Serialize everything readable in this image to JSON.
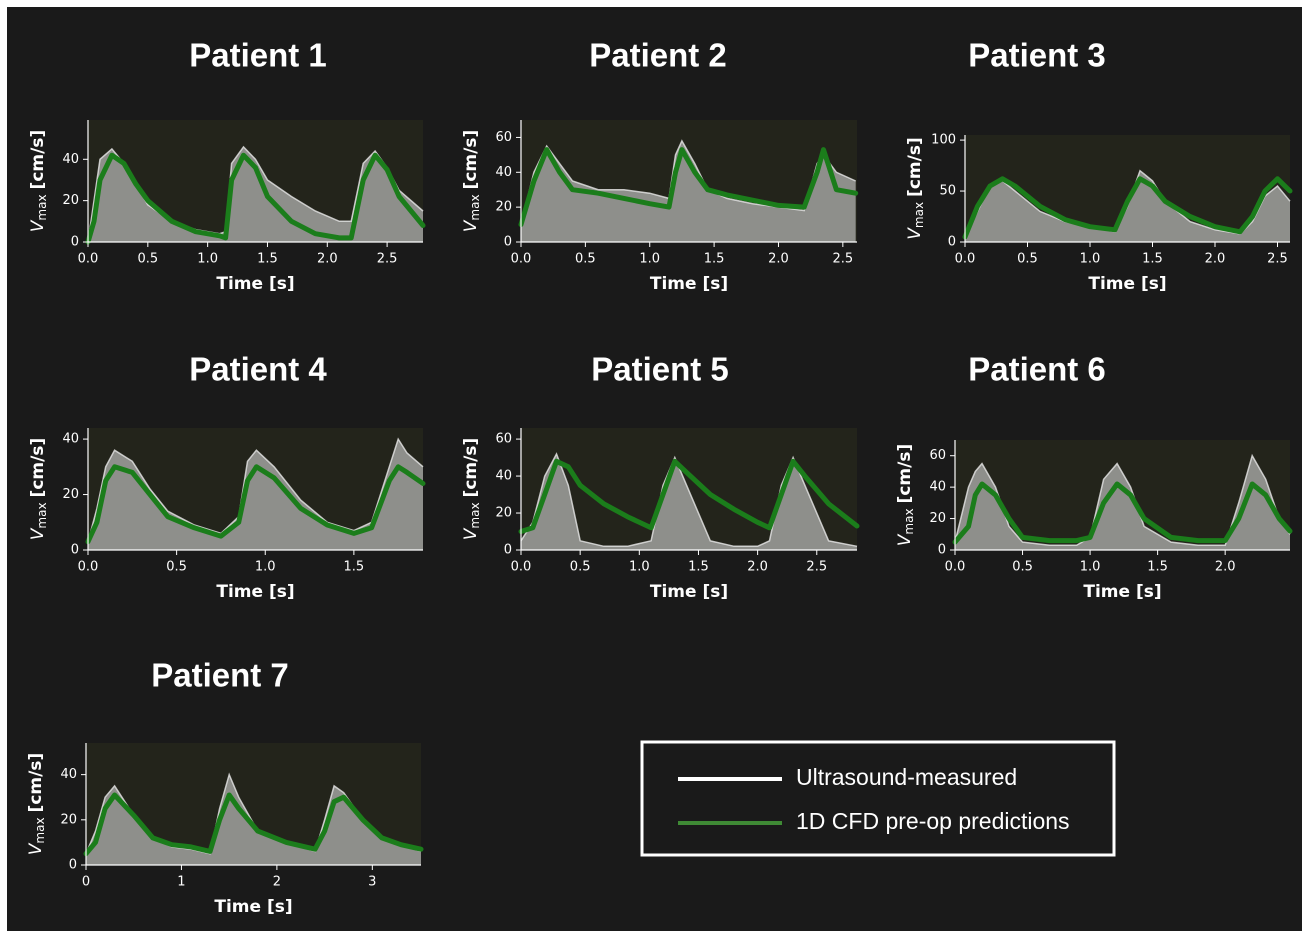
{
  "chart_data": [
    {
      "type": "line",
      "title": "Patient 1",
      "xlabel": "Time [s]",
      "ylabel": {
        "symbol": "V",
        "subscript": "max",
        "unit": "[cm/s]"
      },
      "xlim": [
        0,
        2.8
      ],
      "ylim": [
        0,
        59
      ],
      "xticks": [
        {
          "value": 0,
          "label": "0.0"
        },
        0.5,
        {
          "value": 1,
          "label": "1.0"
        },
        1.5,
        {
          "value": 2,
          "label": "2.0"
        },
        2.5
      ],
      "yticks": [
        0,
        20,
        40
      ],
      "x": [
        0,
        0.05,
        0.1,
        0.2,
        0.3,
        0.4,
        0.5,
        0.7,
        0.9,
        1.1,
        1.15,
        1.2,
        1.3,
        1.4,
        1.5,
        1.7,
        1.9,
        2.1,
        2.2,
        2.3,
        2.4,
        2.5,
        2.6,
        2.8
      ],
      "series": [
        {
          "color": "#e8e8e8",
          "values": [
            0,
            20,
            40,
            45,
            38,
            28,
            18,
            10,
            6,
            4,
            5,
            38,
            46,
            40,
            30,
            22,
            15,
            10,
            10,
            38,
            44,
            36,
            25,
            15
          ]
        },
        {
          "color": "#1b7d1b",
          "values": [
            0,
            10,
            30,
            42,
            38,
            28,
            20,
            10,
            5,
            3,
            2,
            30,
            42,
            36,
            22,
            10,
            4,
            2,
            2,
            30,
            42,
            35,
            22,
            8
          ]
        }
      ]
    },
    {
      "type": "line",
      "title": "Patient 2",
      "xlabel": "Time [s]",
      "ylabel": {
        "symbol": "V",
        "subscript": "max",
        "unit": "[cm/s]"
      },
      "xlim": [
        0,
        2.61
      ],
      "ylim": [
        0,
        70
      ],
      "xticks": [
        {
          "value": 0,
          "label": "0.0"
        },
        0.5,
        {
          "value": 1,
          "label": "1.0"
        },
        1.5,
        {
          "value": 2,
          "label": "2.0"
        },
        2.5
      ],
      "yticks": [
        0,
        20,
        40,
        60
      ],
      "x": [
        0,
        0.1,
        0.2,
        0.3,
        0.4,
        0.6,
        0.8,
        1.0,
        1.15,
        1.2,
        1.25,
        1.35,
        1.45,
        1.6,
        1.8,
        2.0,
        2.2,
        2.3,
        2.35,
        2.45,
        2.6
      ],
      "series": [
        {
          "color": "#e8e8e8",
          "values": [
            10,
            40,
            55,
            45,
            35,
            30,
            30,
            28,
            25,
            50,
            58,
            45,
            30,
            25,
            22,
            20,
            18,
            45,
            50,
            40,
            35
          ]
        },
        {
          "color": "#1b7d1b",
          "values": [
            10,
            35,
            53,
            40,
            30,
            28,
            25,
            22,
            20,
            40,
            53,
            40,
            30,
            27,
            24,
            21,
            20,
            40,
            53,
            30,
            28
          ]
        }
      ]
    },
    {
      "type": "line",
      "title": "Patient 3",
      "xlabel": "Time [s]",
      "ylabel": {
        "symbol": "V",
        "subscript": "max",
        "unit": "[cm/s]"
      },
      "xlim": [
        0,
        2.6
      ],
      "ylim": [
        0,
        105
      ],
      "xticks": [
        {
          "value": 0,
          "label": "0.0"
        },
        0.5,
        {
          "value": 1,
          "label": "1.0"
        },
        1.5,
        {
          "value": 2,
          "label": "2.0"
        },
        2.5
      ],
      "yticks": [
        0,
        50,
        100
      ],
      "x": [
        0,
        0.1,
        0.2,
        0.3,
        0.4,
        0.6,
        0.8,
        1.0,
        1.2,
        1.3,
        1.4,
        1.5,
        1.6,
        1.8,
        2.0,
        2.2,
        2.3,
        2.4,
        2.5,
        2.6
      ],
      "series": [
        {
          "color": "#e8e8e8",
          "values": [
            5,
            30,
            55,
            60,
            50,
            30,
            20,
            15,
            10,
            35,
            70,
            60,
            40,
            20,
            12,
            8,
            20,
            45,
            55,
            40
          ]
        },
        {
          "color": "#1b7d1b",
          "values": [
            5,
            35,
            55,
            62,
            55,
            35,
            22,
            15,
            12,
            40,
            62,
            55,
            40,
            25,
            15,
            10,
            25,
            50,
            62,
            50
          ]
        }
      ]
    },
    {
      "type": "line",
      "title": "Patient 4",
      "xlabel": "Time [s]",
      "ylabel": {
        "symbol": "V",
        "subscript": "max",
        "unit": "[cm/s]"
      },
      "xlim": [
        0,
        1.89
      ],
      "ylim": [
        0,
        44
      ],
      "xticks": [
        {
          "value": 0,
          "label": "0.0"
        },
        0.5,
        {
          "value": 1,
          "label": "1.0"
        },
        1.5
      ],
      "yticks": [
        0,
        20,
        40
      ],
      "x": [
        0,
        0.05,
        0.1,
        0.15,
        0.25,
        0.35,
        0.45,
        0.6,
        0.75,
        0.85,
        0.9,
        0.95,
        1.05,
        1.2,
        1.35,
        1.5,
        1.6,
        1.7,
        1.75,
        1.8,
        1.89
      ],
      "series": [
        {
          "color": "#e8e8e8",
          "values": [
            3,
            15,
            30,
            36,
            32,
            22,
            14,
            9,
            6,
            12,
            32,
            36,
            30,
            18,
            10,
            7,
            10,
            30,
            40,
            35,
            30
          ]
        },
        {
          "color": "#1b7d1b",
          "values": [
            3,
            10,
            25,
            30,
            28,
            20,
            12,
            8,
            5,
            10,
            25,
            30,
            26,
            15,
            9,
            6,
            8,
            25,
            30,
            28,
            24
          ]
        }
      ]
    },
    {
      "type": "line",
      "title": "Patient 5",
      "xlabel": "Time [s]",
      "ylabel": {
        "symbol": "V",
        "subscript": "max",
        "unit": "[cm/s]"
      },
      "xlim": [
        0,
        2.84
      ],
      "ylim": [
        0,
        66
      ],
      "xticks": [
        {
          "value": 0,
          "label": "0.0"
        },
        0.5,
        {
          "value": 1,
          "label": "1.0"
        },
        1.5,
        {
          "value": 2,
          "label": "2.0"
        },
        2.5
      ],
      "yticks": [
        0,
        20,
        40,
        60
      ],
      "x": [
        0,
        0.1,
        0.2,
        0.3,
        0.4,
        0.5,
        0.7,
        0.9,
        1.1,
        1.2,
        1.3,
        1.4,
        1.6,
        1.8,
        2.0,
        2.1,
        2.2,
        2.3,
        2.4,
        2.6,
        2.84
      ],
      "series": [
        {
          "color": "#e8e8e8",
          "values": [
            5,
            15,
            40,
            52,
            35,
            5,
            2,
            2,
            5,
            35,
            50,
            35,
            5,
            2,
            2,
            5,
            35,
            50,
            35,
            5,
            2
          ]
        },
        {
          "color": "#1b7d1b",
          "values": [
            10,
            12,
            30,
            48,
            45,
            35,
            25,
            18,
            12,
            30,
            48,
            42,
            30,
            22,
            15,
            12,
            30,
            48,
            40,
            25,
            13
          ]
        }
      ]
    },
    {
      "type": "line",
      "title": "Patient 6",
      "xlabel": "Time [s]",
      "ylabel": {
        "symbol": "V",
        "subscript": "max",
        "unit": "[cm/s]"
      },
      "xlim": [
        0,
        2.48
      ],
      "ylim": [
        0,
        70
      ],
      "xticks": [
        {
          "value": 0,
          "label": "0.0"
        },
        0.5,
        {
          "value": 1,
          "label": "1.0"
        },
        1.5,
        {
          "value": 2,
          "label": "2.0"
        }
      ],
      "yticks": [
        0,
        20,
        40,
        60
      ],
      "x": [
        0,
        0.1,
        0.15,
        0.2,
        0.3,
        0.4,
        0.5,
        0.7,
        0.9,
        1.0,
        1.1,
        1.2,
        1.3,
        1.4,
        1.6,
        1.8,
        2.0,
        2.1,
        2.2,
        2.3,
        2.4,
        2.48
      ],
      "series": [
        {
          "color": "#e8e8e8",
          "values": [
            5,
            40,
            50,
            55,
            40,
            15,
            5,
            3,
            3,
            8,
            45,
            55,
            40,
            15,
            5,
            3,
            3,
            30,
            60,
            45,
            20,
            10
          ]
        },
        {
          "color": "#1b7d1b",
          "values": [
            5,
            15,
            35,
            42,
            35,
            20,
            8,
            6,
            6,
            8,
            30,
            42,
            35,
            20,
            8,
            6,
            6,
            20,
            42,
            35,
            20,
            12
          ]
        }
      ]
    },
    {
      "type": "line",
      "title": "Patient 7",
      "xlabel": "Time [s]",
      "ylabel": {
        "symbol": "V",
        "subscript": "max",
        "unit": "[cm/s]"
      },
      "xlim": [
        0,
        3.51
      ],
      "ylim": [
        0,
        54
      ],
      "xticks": [
        0,
        1,
        2,
        3
      ],
      "yticks": [
        0,
        20,
        40
      ],
      "x": [
        0,
        0.1,
        0.2,
        0.3,
        0.5,
        0.7,
        0.9,
        1.1,
        1.3,
        1.4,
        1.5,
        1.6,
        1.8,
        2.1,
        2.4,
        2.5,
        2.6,
        2.7,
        2.9,
        3.1,
        3.3,
        3.51
      ],
      "series": [
        {
          "color": "#e8e8e8",
          "values": [
            5,
            15,
            30,
            35,
            22,
            12,
            8,
            7,
            5,
            25,
            40,
            30,
            15,
            10,
            6,
            20,
            35,
            32,
            20,
            12,
            9,
            6
          ]
        },
        {
          "color": "#1b7d1b",
          "values": [
            5,
            10,
            25,
            31,
            22,
            12,
            9,
            8,
            6,
            20,
            31,
            25,
            15,
            10,
            7,
            15,
            28,
            30,
            20,
            12,
            9,
            7
          ]
        }
      ]
    }
  ],
  "legend": {
    "entries": [
      {
        "name": "Ultrasound-measured",
        "color": "#ffffff"
      },
      {
        "name": "1D CFD pre-op predictions",
        "color": "#3f8a35"
      }
    ]
  }
}
